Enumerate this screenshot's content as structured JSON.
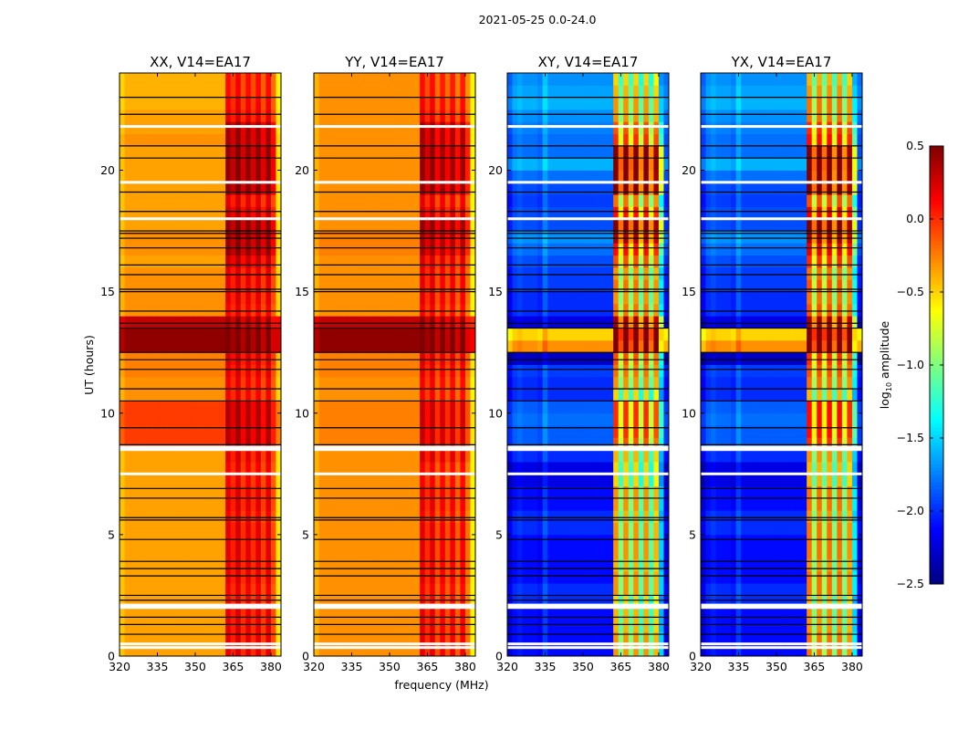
{
  "chart_data": {
    "type": "heatmap",
    "suptitle": "2021-05-25 0.0-24.0",
    "xlabel": "frequency (MHz)",
    "ylabel": "UT (hours)",
    "xlim": [
      320,
      384
    ],
    "ylim": [
      0,
      24
    ],
    "xticks": [
      320,
      335,
      350,
      365,
      380
    ],
    "yticks": [
      0,
      5,
      10,
      15,
      20
    ],
    "time_bin_hours": 0.5,
    "freq_bin_mhz": 2,
    "rfi_band_mhz": [
      362,
      382
    ],
    "colorbar": {
      "label_main": "log",
      "label_sub": "10",
      "label_rest": " amplitude",
      "colormap": "jet",
      "range": [
        -2.5,
        0.5
      ],
      "ticks": [
        "0.5",
        "0.0",
        "−0.5",
        "−1.0",
        "−1.5",
        "−2.0",
        "−2.5"
      ],
      "tick_values": [
        0.5,
        0.0,
        -0.5,
        -1.0,
        -1.5,
        -2.0,
        -2.5
      ]
    },
    "flagged_white_hours": [
      0.35,
      0.5,
      2.0,
      2.1,
      7.5,
      8.5,
      8.6,
      18.0,
      19.5,
      21.8
    ],
    "flag_black_lines_hours": [
      0.9,
      1.3,
      1.6,
      2.3,
      2.5,
      3.3,
      3.6,
      3.9,
      4.8,
      5.6,
      5.7,
      6.5,
      6.9,
      8.7,
      9.4,
      10.5,
      11.0,
      11.8,
      12.2,
      12.5,
      13.5,
      13.7,
      14.2,
      15.0,
      15.1,
      15.7,
      16.1,
      16.8,
      17.2,
      17.4,
      17.5,
      18.3,
      19.1,
      20.5,
      21.0,
      22.3,
      23.0
    ],
    "panels": [
      {
        "title": "XX, V14=EA17",
        "continuum_level": [
          -0.35,
          -0.35,
          -0.35,
          -0.35,
          -0.35,
          -0.35,
          -0.35,
          -0.35,
          -0.35,
          -0.35,
          -0.35,
          -0.35,
          -0.35,
          -0.35,
          -0.35,
          -0.35,
          -0.35,
          -0.05,
          -0.05,
          -0.05,
          -0.05,
          -0.3,
          -0.3,
          -0.25,
          -0.25,
          0.45,
          0.45,
          0.3,
          -0.3,
          -0.3,
          -0.3,
          -0.3,
          -0.35,
          -0.3,
          -0.3,
          -0.35,
          -0.35,
          -0.35,
          -0.35,
          -0.35,
          -0.35,
          -0.35,
          -0.3,
          -0.35,
          -0.35,
          -0.4,
          -0.4,
          -0.4
        ],
        "band_level": [
          0.1,
          0.1,
          0.1,
          0.1,
          0.05,
          0.05,
          0.1,
          0.1,
          0.1,
          0.1,
          0.1,
          0.05,
          0.1,
          0.1,
          0.05,
          0.05,
          0.1,
          0.25,
          0.25,
          0.25,
          0.25,
          0.05,
          0.05,
          0.1,
          0.15,
          0.45,
          0.45,
          0.3,
          0.05,
          0.1,
          0.1,
          0.1,
          0.2,
          0.35,
          0.35,
          0.35,
          0.2,
          0.1,
          0.35,
          0.35,
          0.35,
          0.35,
          0.3,
          0.3,
          0.1,
          0.05,
          0.0,
          0.0
        ],
        "freq_offsets": [
          -0.1,
          0,
          0,
          0,
          0,
          0,
          0,
          0,
          0,
          0,
          0,
          0,
          0,
          0,
          0,
          0,
          0,
          0,
          0,
          0,
          0,
          0.1,
          -0.05,
          0.15,
          -0.1,
          0.1,
          -0.1,
          0.1,
          -0.15,
          0.1,
          -0.2,
          -0.2
        ]
      },
      {
        "title": "YY, V14=EA17",
        "continuum_level": [
          -0.3,
          -0.3,
          -0.3,
          -0.3,
          -0.3,
          -0.3,
          -0.3,
          -0.3,
          -0.3,
          -0.3,
          -0.3,
          -0.3,
          -0.3,
          -0.3,
          -0.3,
          -0.3,
          -0.3,
          -0.25,
          -0.25,
          -0.25,
          -0.25,
          -0.3,
          -0.3,
          -0.25,
          -0.25,
          0.45,
          0.45,
          0.3,
          -0.3,
          -0.3,
          -0.3,
          -0.3,
          -0.3,
          -0.25,
          -0.25,
          -0.3,
          -0.3,
          -0.3,
          -0.3,
          -0.3,
          -0.3,
          -0.3,
          -0.3,
          -0.3,
          -0.3,
          -0.3,
          -0.3,
          -0.3
        ],
        "band_level": [
          0.05,
          0.05,
          0.05,
          0.05,
          0.0,
          0.0,
          0.05,
          0.05,
          0.05,
          0.05,
          0.05,
          0.0,
          0.05,
          0.05,
          0.0,
          0.0,
          0.1,
          0.15,
          0.15,
          0.15,
          0.15,
          0.0,
          0.0,
          0.05,
          0.1,
          0.45,
          0.45,
          0.3,
          0.0,
          0.05,
          0.05,
          0.05,
          0.1,
          0.25,
          0.25,
          0.3,
          0.15,
          0.05,
          0.3,
          0.3,
          0.3,
          0.3,
          0.25,
          0.25,
          0.05,
          0.0,
          -0.05,
          -0.05
        ],
        "freq_offsets": [
          -0.1,
          0,
          0,
          0,
          0,
          0,
          0,
          0,
          0,
          0,
          0,
          0,
          0,
          0,
          0,
          0,
          0,
          0,
          0,
          0,
          0,
          0.15,
          -0.05,
          0.15,
          -0.15,
          0.1,
          -0.15,
          0.1,
          -0.2,
          0.1,
          -0.25,
          -0.3
        ]
      },
      {
        "title": "XY, V14=EA17",
        "continuum_level": [
          -2.1,
          -2.1,
          -2.1,
          -2.1,
          -2.0,
          -2.0,
          -2.1,
          -2.1,
          -2.1,
          -2.1,
          -2.0,
          -2.0,
          -2.1,
          -2.1,
          -2.2,
          -2.2,
          -2.0,
          -1.85,
          -1.85,
          -1.8,
          -1.85,
          -2.0,
          -2.0,
          -1.95,
          -2.3,
          -0.3,
          -0.5,
          -2.2,
          -2.0,
          -2.0,
          -1.95,
          -1.95,
          -1.9,
          -1.8,
          -1.7,
          -1.9,
          -1.9,
          -1.95,
          -1.9,
          -1.8,
          -1.6,
          -1.8,
          -1.8,
          -1.75,
          -1.7,
          -1.6,
          -1.65,
          -1.7
        ],
        "band_level": [
          -0.6,
          -0.6,
          -0.7,
          -0.7,
          -0.8,
          -0.6,
          -0.6,
          -0.7,
          -0.6,
          -0.6,
          -0.6,
          -0.7,
          -0.6,
          -0.6,
          -0.8,
          -0.8,
          -0.7,
          -0.4,
          -0.3,
          -0.3,
          -0.3,
          -0.8,
          -0.6,
          -0.5,
          -0.4,
          0.3,
          0.4,
          0.1,
          -0.5,
          -0.6,
          -0.5,
          -0.6,
          -0.4,
          -0.2,
          0.1,
          0.2,
          -0.2,
          -0.5,
          0.2,
          0.2,
          0.25,
          0.2,
          -0.3,
          -0.4,
          -0.6,
          -0.6,
          -0.7,
          -0.8
        ],
        "freq_offsets": [
          -0.15,
          0,
          0.05,
          0,
          0,
          0,
          -0.05,
          0.15,
          0,
          0,
          0,
          0,
          0,
          0,
          0,
          0,
          0,
          0,
          0,
          0,
          0,
          0.3,
          -0.4,
          0.3,
          -0.4,
          0.3,
          -0.5,
          0.3,
          -0.5,
          0.2,
          -0.9,
          -0.1
        ]
      },
      {
        "title": "YX, V14=EA17",
        "continuum_level": [
          -2.1,
          -2.1,
          -2.1,
          -2.1,
          -2.0,
          -2.0,
          -2.1,
          -2.1,
          -2.1,
          -2.1,
          -2.0,
          -2.0,
          -2.1,
          -2.1,
          -2.2,
          -2.2,
          -2.0,
          -1.85,
          -1.85,
          -1.8,
          -1.85,
          -2.0,
          -2.0,
          -1.95,
          -2.3,
          -0.3,
          -0.5,
          -2.2,
          -2.0,
          -2.0,
          -1.95,
          -1.95,
          -1.9,
          -1.8,
          -1.7,
          -1.9,
          -1.9,
          -1.95,
          -1.9,
          -1.8,
          -1.6,
          -1.8,
          -1.8,
          -1.75,
          -1.7,
          -1.6,
          -1.65,
          -1.7
        ],
        "band_level": [
          -0.5,
          -0.5,
          -0.6,
          -0.6,
          -0.7,
          -0.5,
          -0.5,
          -0.6,
          -0.5,
          -0.5,
          -0.5,
          -0.6,
          -0.5,
          -0.5,
          -0.7,
          -0.7,
          -0.6,
          -0.3,
          -0.2,
          -0.2,
          -0.2,
          -0.7,
          -0.5,
          -0.4,
          -0.3,
          0.3,
          0.4,
          0.1,
          -0.4,
          -0.5,
          -0.4,
          -0.5,
          -0.3,
          -0.1,
          0.1,
          0.2,
          -0.1,
          -0.4,
          0.2,
          0.2,
          0.25,
          0.2,
          -0.2,
          -0.3,
          -0.5,
          -0.5,
          -0.6,
          -0.7
        ],
        "freq_offsets": [
          -0.15,
          0,
          0.05,
          0,
          0,
          0,
          -0.05,
          0.15,
          0,
          0,
          0,
          0,
          0,
          0,
          0,
          0,
          0,
          0,
          0,
          0,
          0,
          0.3,
          -0.4,
          0.3,
          -0.4,
          0.3,
          -0.5,
          0.3,
          -0.5,
          0.2,
          -0.9,
          -0.1
        ]
      }
    ]
  }
}
